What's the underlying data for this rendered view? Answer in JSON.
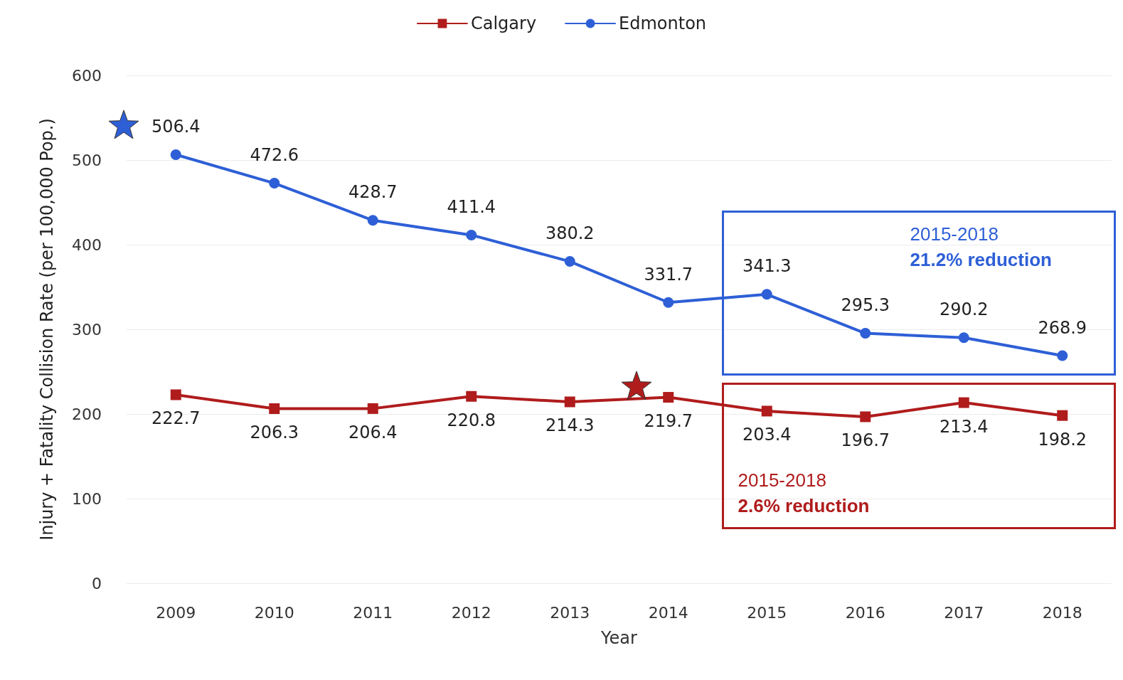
{
  "chart_data": {
    "type": "line",
    "xlabel": "Year",
    "ylabel": "Injury + Fatality Collision Rate (per 100,000 Pop.)",
    "categories": [
      "2009",
      "2010",
      "2011",
      "2012",
      "2013",
      "2014",
      "2015",
      "2016",
      "2017",
      "2018"
    ],
    "series": [
      {
        "name": "Calgary",
        "color": "#b01c1c",
        "marker": "square",
        "values": [
          222.7,
          206.3,
          206.4,
          220.8,
          214.3,
          219.7,
          203.4,
          196.7,
          213.4,
          198.2
        ]
      },
      {
        "name": "Edmonton",
        "color": "#2e5fd6",
        "marker": "circle",
        "values": [
          506.4,
          472.6,
          428.7,
          411.4,
          380.2,
          331.7,
          341.3,
          295.3,
          290.2,
          268.9
        ]
      }
    ],
    "ylim": [
      0,
      600
    ],
    "yticks": [
      0,
      100,
      200,
      300,
      400,
      500,
      600
    ],
    "grid": "y",
    "legend": "top",
    "data_labels": true,
    "line_style": "solid",
    "annotations": [
      "2015-2018\n2.6% reduction",
      "2015-2018\n21.2% reduction"
    ]
  }
}
